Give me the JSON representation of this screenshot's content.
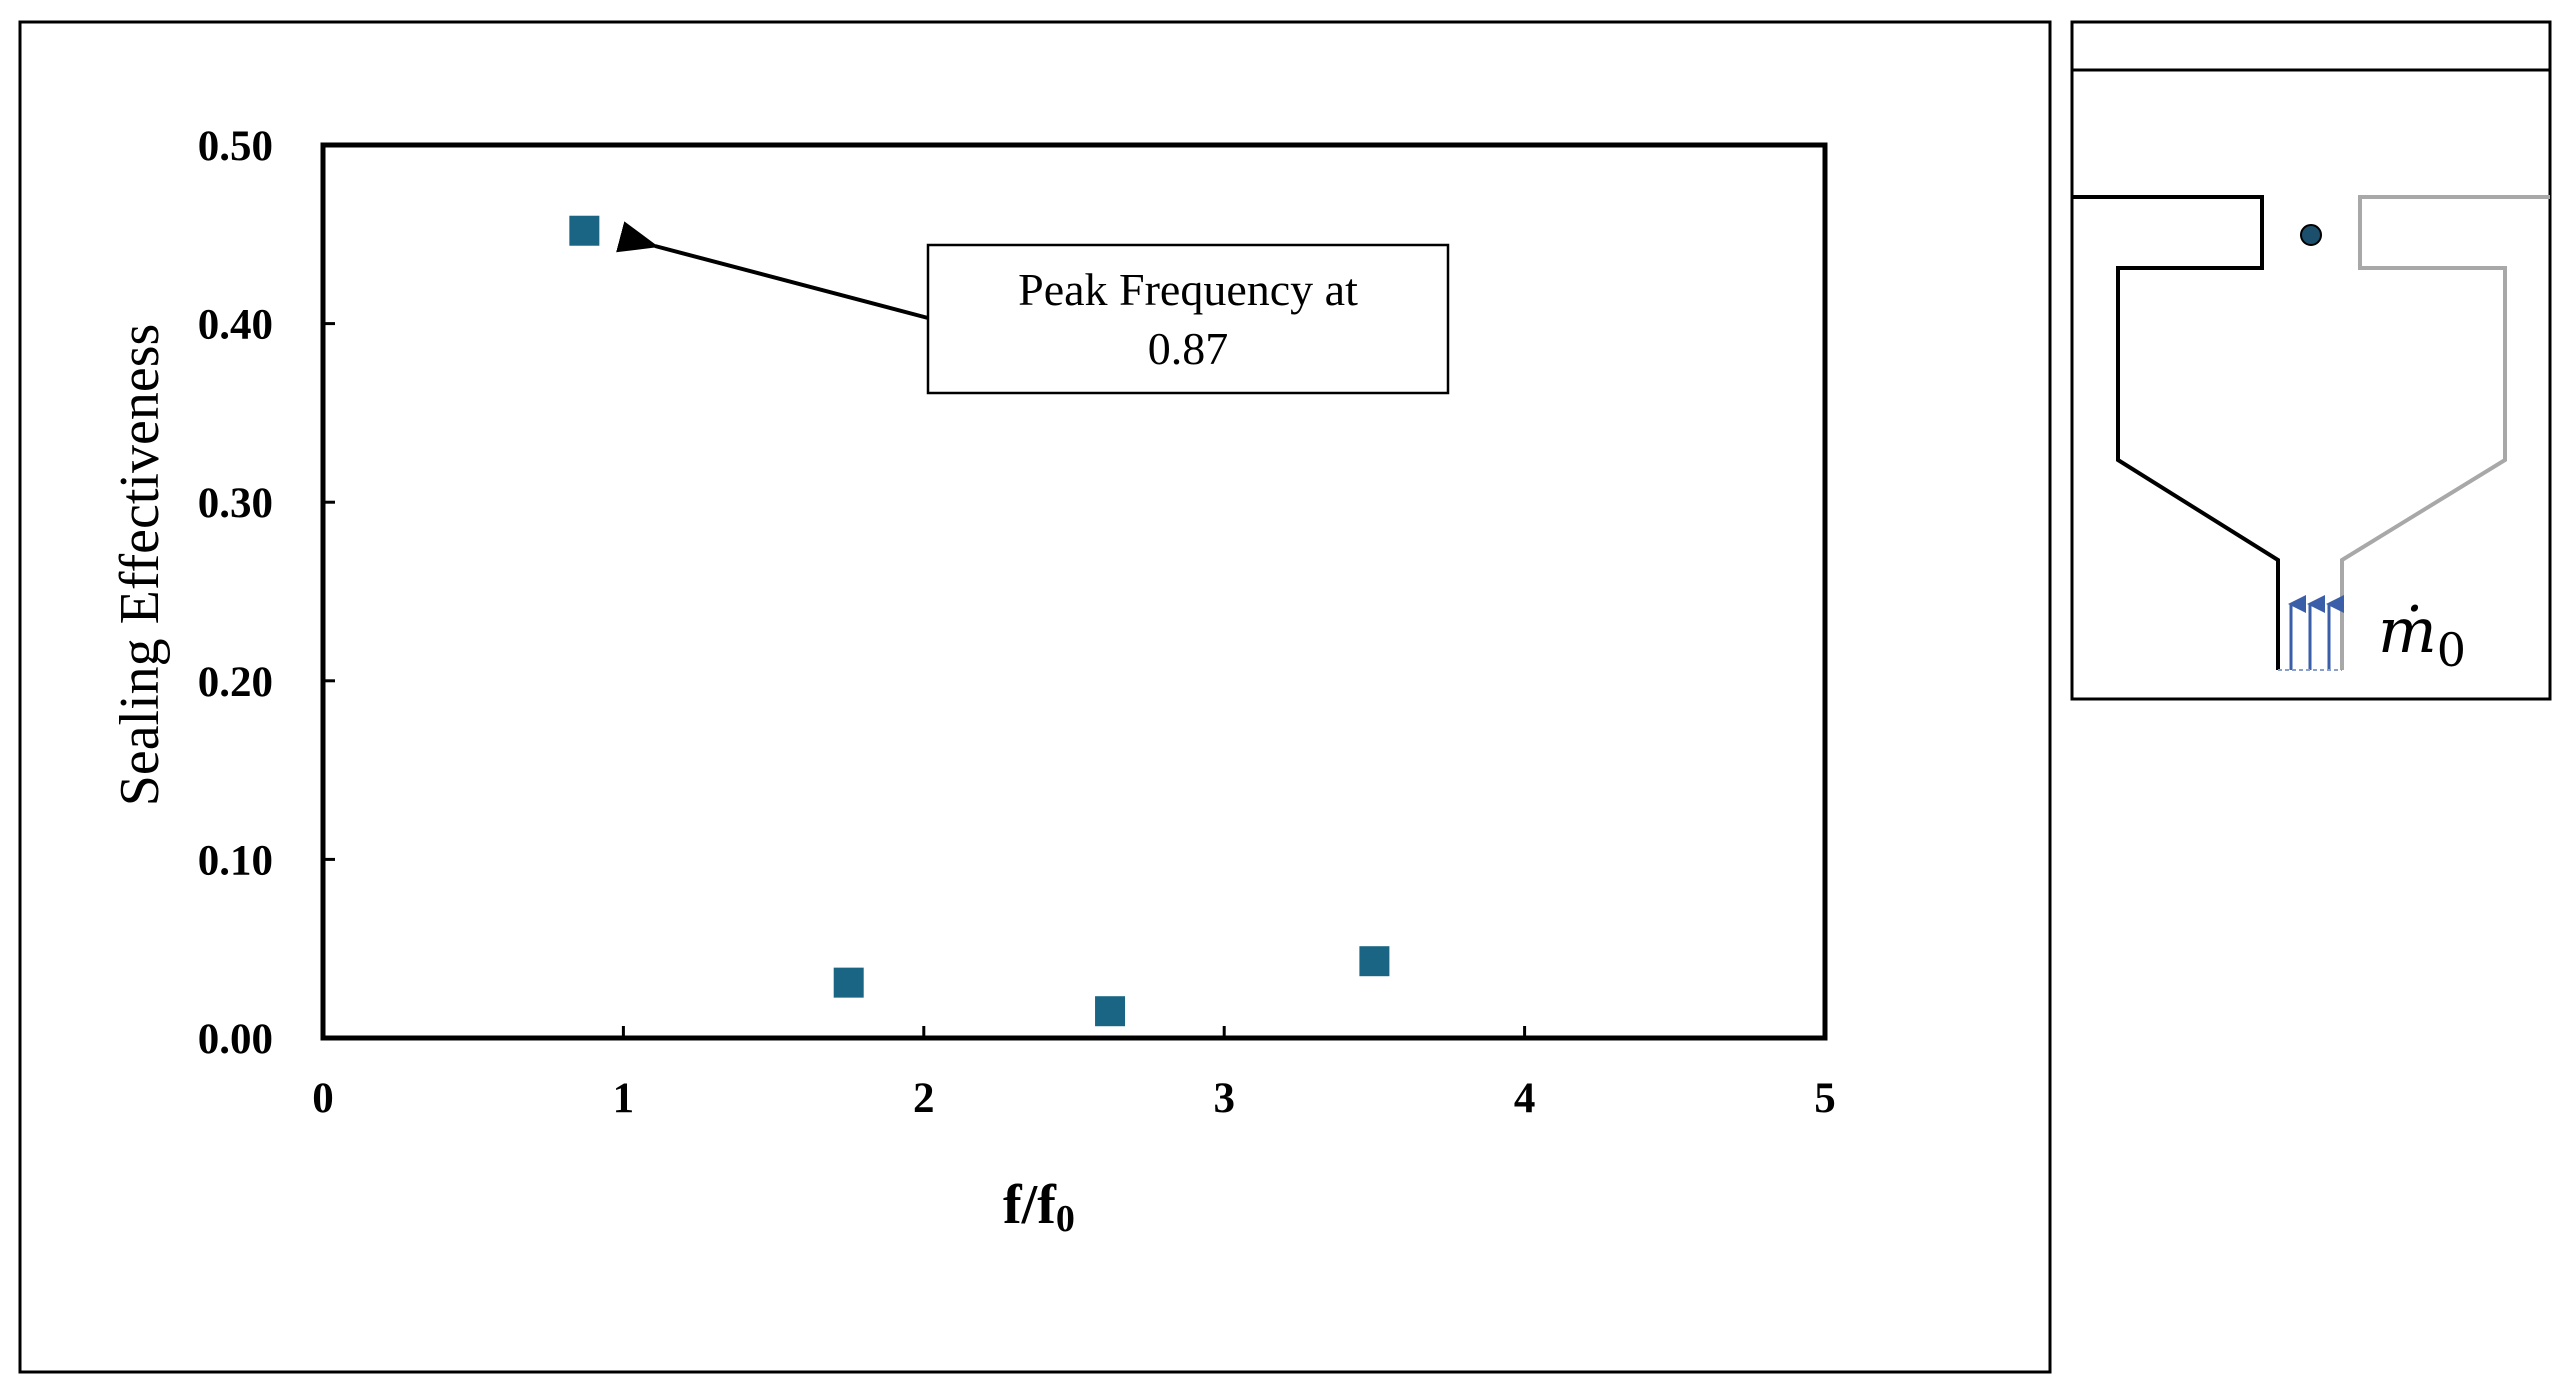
{
  "chart_data": {
    "type": "scatter",
    "title": "",
    "xlabel": "f/f",
    "xlabel_sub": "0",
    "ylabel": "Sealing Effectiveness",
    "xlim": [
      0,
      5
    ],
    "ylim": [
      0,
      0.5
    ],
    "x_ticks": [
      "0",
      "1",
      "2",
      "3",
      "4",
      "5"
    ],
    "y_ticks": [
      "0.00",
      "0.10",
      "0.20",
      "0.30",
      "0.40",
      "0.50"
    ],
    "grid": false,
    "legend": "none",
    "marker_color": "#1b6584",
    "x": [
      0.87,
      1.75,
      2.62,
      3.5
    ],
    "y": [
      0.452,
      0.031,
      0.015,
      0.043
    ],
    "annotation": {
      "lines": [
        "Peak Frequency at",
        "0.87"
      ],
      "points_to": 0
    }
  },
  "schematic": {
    "mass_flow_symbol": "ṁ",
    "mass_flow_sub": "0",
    "arrow_color": "#3a5ea8",
    "dot_color": "#1b4f6b"
  }
}
